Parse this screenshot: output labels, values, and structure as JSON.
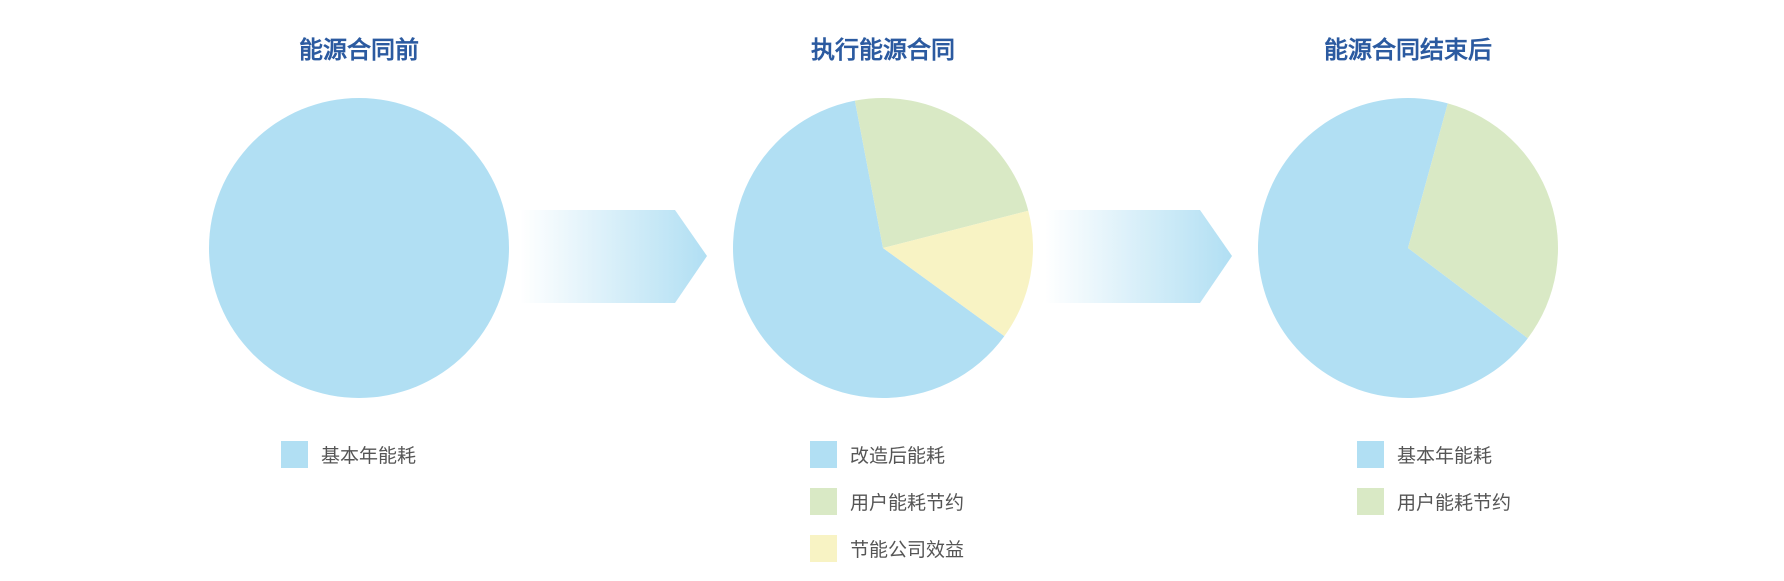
{
  "colors": {
    "base": "#b1dff3",
    "savings": "#d9e9c5",
    "benefit": "#f8f3c4",
    "title": "#2b5aa0"
  },
  "chart_data": [
    {
      "type": "pie",
      "title": "能源合同前",
      "slices": [
        {
          "label": "基本年能耗",
          "value": 100,
          "color": "#b1dff3"
        }
      ]
    },
    {
      "type": "pie",
      "title": "执行能源合同",
      "slices": [
        {
          "label": "改造后能耗",
          "value": 62,
          "color": "#b1dff3"
        },
        {
          "label": "用户能耗节约",
          "value": 24,
          "color": "#d9e9c5"
        },
        {
          "label": "节能公司效益",
          "value": 14,
          "color": "#f8f3c4"
        }
      ],
      "start_angle_deg": 126
    },
    {
      "type": "pie",
      "title": "能源合同结束后",
      "slices": [
        {
          "label": "基本年能耗",
          "value": 69,
          "color": "#b1dff3"
        },
        {
          "label": "用户能耗节约",
          "value": 31,
          "color": "#d9e9c5"
        }
      ],
      "start_angle_deg": 127
    }
  ]
}
